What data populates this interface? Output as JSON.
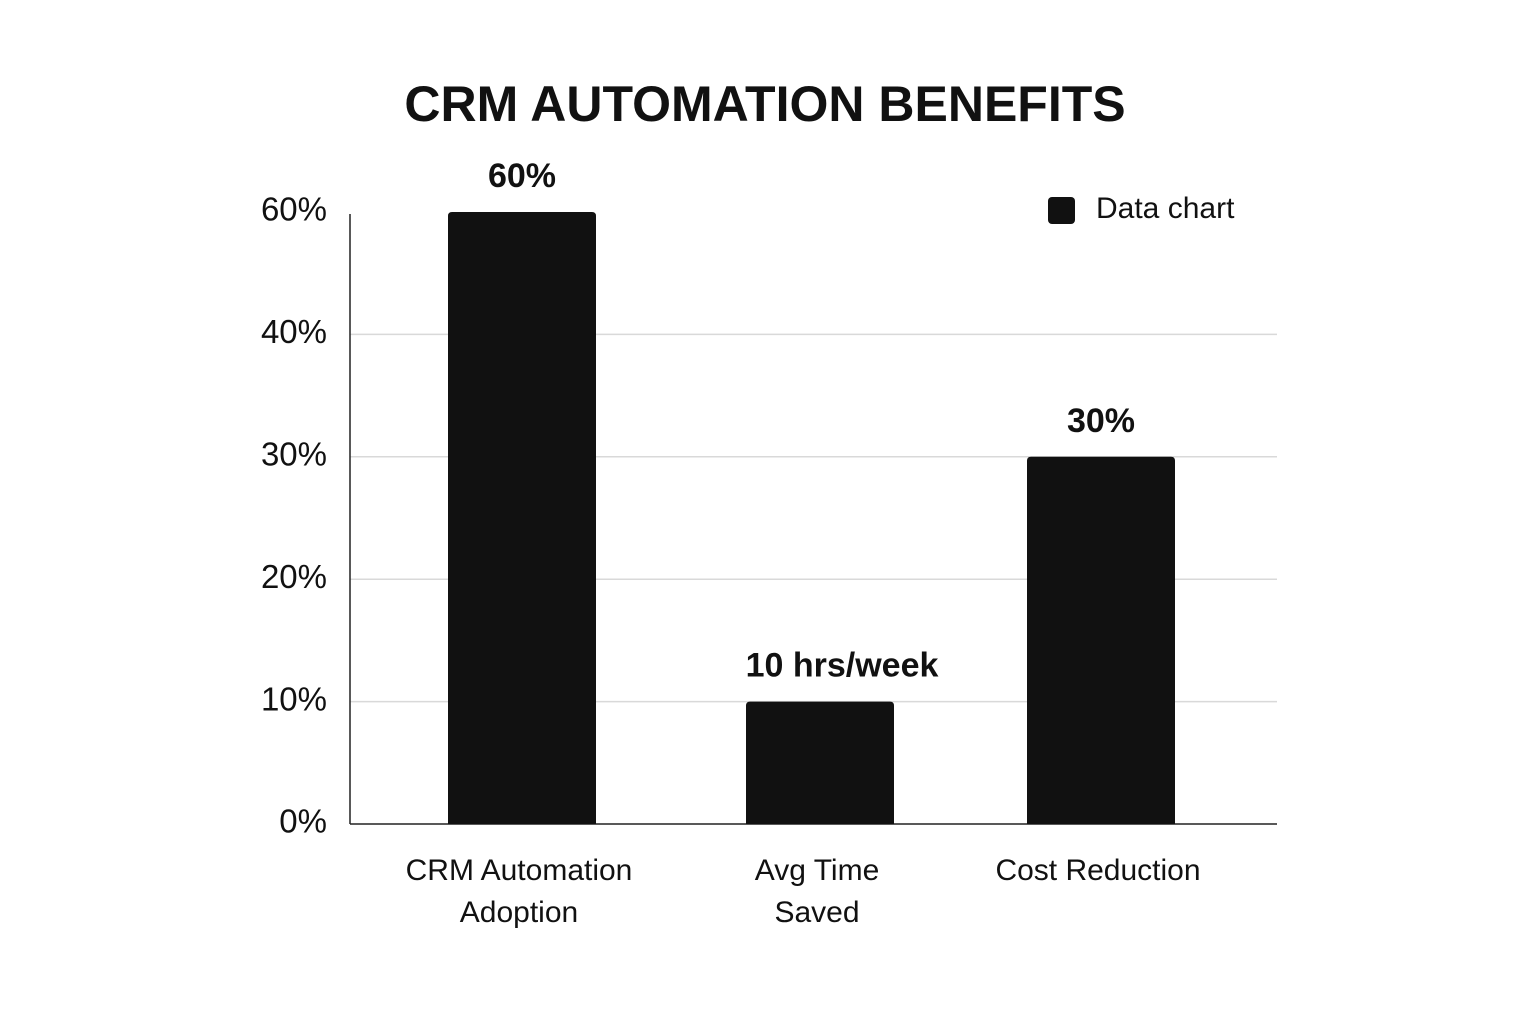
{
  "chart_data": {
    "type": "bar",
    "title": "CRM AUTOMATION BENEFITS",
    "categories": [
      "CRM Automation\nAdoption",
      "Avg Time\nSaved",
      "Cost Reduction"
    ],
    "series": [
      {
        "name": "Data chart",
        "color": "#111111",
        "values": [
          60,
          10,
          30
        ],
        "value_labels": [
          "60%",
          "10 hrs/week",
          "30%"
        ]
      }
    ],
    "ylim": [
      0,
      60
    ],
    "yticks": [
      {
        "value": 0,
        "label": "0%"
      },
      {
        "value": 10,
        "label": "10%"
      },
      {
        "value": 20,
        "label": "20%"
      },
      {
        "value": 30,
        "label": "30%"
      },
      {
        "value": 40,
        "label": "40%"
      },
      {
        "value": 60,
        "label": "60%"
      }
    ],
    "grid": true,
    "legend": "top-right"
  }
}
